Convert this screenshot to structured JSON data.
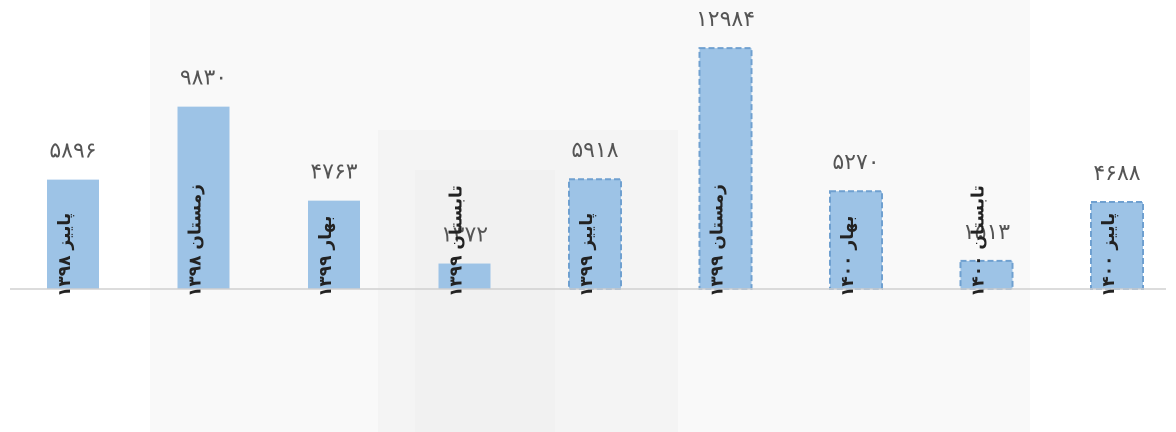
{
  "chart_data": {
    "type": "bar",
    "categories": [
      "پاییز ۱۳۹۸",
      "زمستان ۱۳۹۸",
      "بهار ۱۳۹۹",
      "تابستان ۱۳۹۹",
      "پاییز ۱۳۹۹",
      "زمستان ۱۳۹۹",
      "بهار ۱۴۰۰",
      "تابستان ۱۴۰۰",
      "پاییز ۱۴۰۰"
    ],
    "values": [
      5896,
      9830,
      4763,
      1372,
      5918,
      12984,
      5270,
      1513,
      4688
    ],
    "value_labels": [
      "۵۸۹۶",
      "۹۸۳۰",
      "۴۷۶۳",
      "۱۳۷۲",
      "۵۹۱۸",
      "۱۲۹۸۴",
      "۵۲۷۰",
      "۱۵۱۳",
      "۴۶۸۸"
    ],
    "dashed_outline": [
      false,
      false,
      false,
      false,
      true,
      true,
      true,
      true,
      true
    ],
    "title": "",
    "xlabel": "",
    "ylabel": "",
    "ylim": [
      0,
      14500
    ],
    "grid": false,
    "legend": "none",
    "colors": {
      "bar": "#9dc3e6",
      "bar_outline": "#6fa0d0",
      "axis": "#d0d0d0",
      "value_text": "#555555",
      "category_text": "#222222",
      "background_shape": "#efefef"
    }
  }
}
